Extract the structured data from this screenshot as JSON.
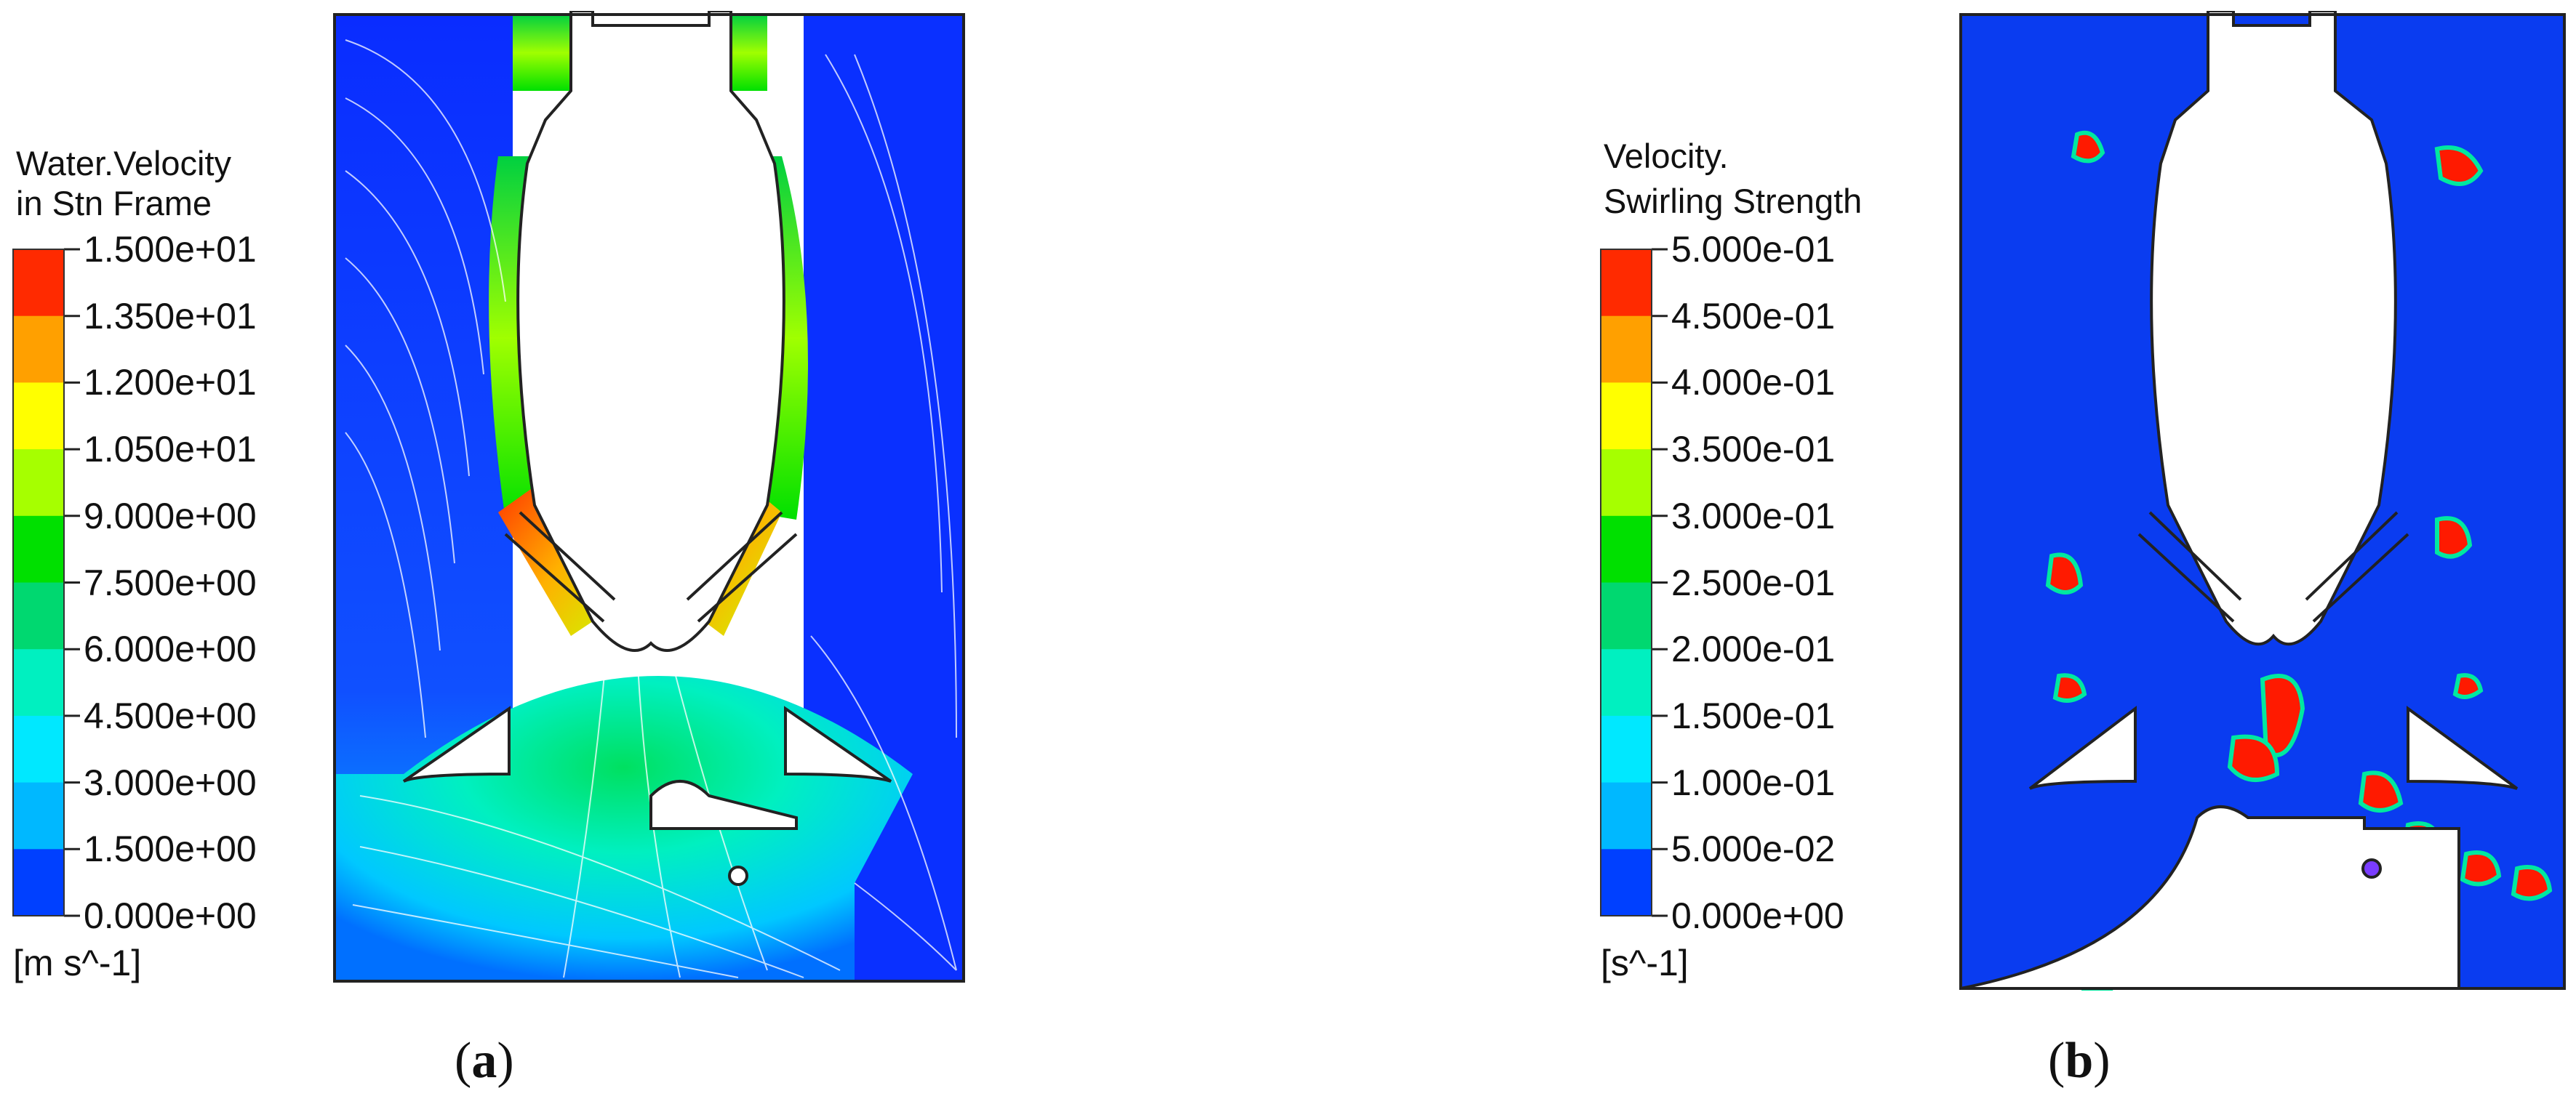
{
  "panels": [
    {
      "id": "a",
      "legend": {
        "title_line1": "Water.Velocity",
        "title_line2": "in Stn Frame",
        "ticks": [
          "1.500e+01",
          "1.350e+01",
          "1.200e+01",
          "1.050e+01",
          "9.000e+00",
          "7.500e+00",
          "6.000e+00",
          "4.500e+00",
          "3.000e+00",
          "1.500e+00",
          "0.000e+00"
        ],
        "unit": "[m s^-1]"
      },
      "caption_letter": "a"
    },
    {
      "id": "b",
      "legend": {
        "title_line1": "Velocity.",
        "title_line2": "Swirling Strength",
        "ticks": [
          "5.000e-01",
          "4.500e-01",
          "4.000e-01",
          "3.500e-01",
          "3.000e-01",
          "2.500e-01",
          "2.000e-01",
          "1.500e-01",
          "1.000e-01",
          "5.000e-02",
          "0.000e+00"
        ],
        "unit": "[s^-1]"
      },
      "caption_letter": "b"
    }
  ],
  "colors": {
    "scale": [
      "#ff2a00",
      "#ff5a00",
      "#ffa000",
      "#ffd800",
      "#ffff00",
      "#a6ff00",
      "#5cff00",
      "#00e000",
      "#00d870",
      "#00f0c0",
      "#00e8ff",
      "#00b8ff",
      "#0080ff",
      "#0040ff",
      "#0020e0"
    ],
    "legend_bands_top_to_bottom": [
      "#ff2a00",
      "#ffa000",
      "#ffff00",
      "#a6ff00",
      "#00e000",
      "#00d870",
      "#00f0c0",
      "#00e8ff",
      "#00b8ff",
      "#0040ff"
    ],
    "field_background_b": "#0a3cf0",
    "vortex_red": "#ff1a00"
  }
}
